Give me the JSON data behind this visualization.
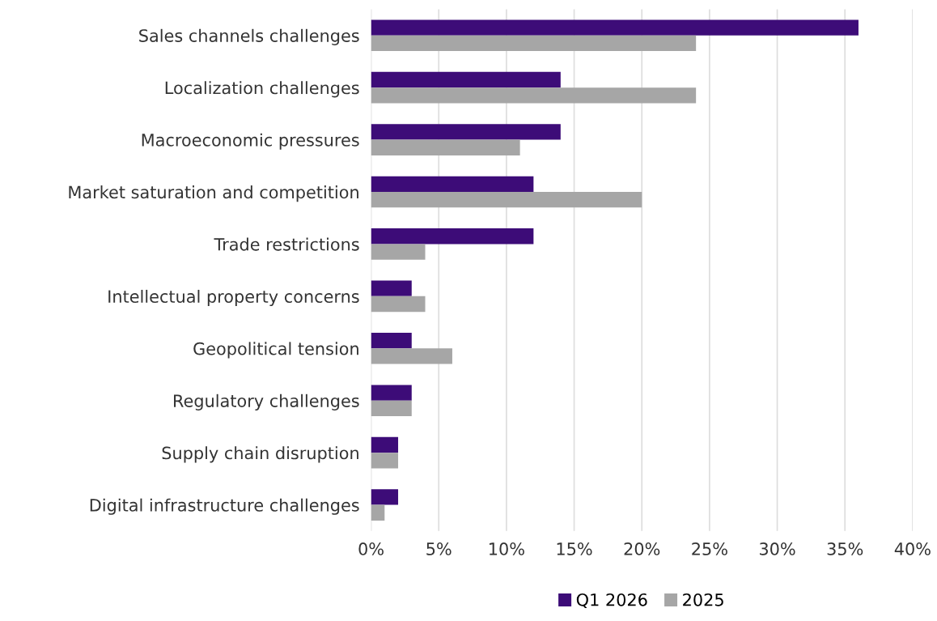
{
  "chart_data": {
    "type": "bar",
    "orientation": "horizontal",
    "categories": [
      "Sales channels challenges",
      "Localization challenges",
      "Macroeconomic pressures",
      "Market saturation and competition",
      "Trade restrictions",
      "Intellectual property concerns",
      "Geopolitical tension",
      "Regulatory challenges",
      "Supply chain disruption",
      "Digital infrastructure challenges"
    ],
    "series": [
      {
        "name": "Q1 2026",
        "color": "#3d0c78",
        "values": [
          36,
          14,
          14,
          12,
          12,
          3,
          3,
          3,
          2,
          2
        ]
      },
      {
        "name": "2025",
        "color": "#a6a6a6",
        "values": [
          24,
          24,
          11,
          20,
          4,
          4,
          6,
          3,
          2,
          1
        ]
      }
    ],
    "xlim": [
      0,
      40
    ],
    "xticks": [
      {
        "value": 0,
        "label": "0%"
      },
      {
        "value": 5,
        "label": "5%"
      },
      {
        "value": 10,
        "label": "10%"
      },
      {
        "value": 15,
        "label": "15%"
      },
      {
        "value": 20,
        "label": "20%"
      },
      {
        "value": 25,
        "label": "25%"
      },
      {
        "value": 30,
        "label": "30%"
      },
      {
        "value": 35,
        "label": "35%"
      },
      {
        "value": 40,
        "label": "40%"
      }
    ],
    "grid": "x",
    "legend": "bottom"
  }
}
